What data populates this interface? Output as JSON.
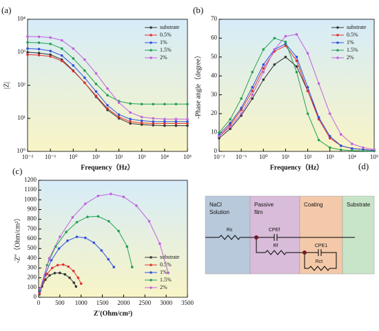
{
  "chart_data": [
    {
      "type": "line",
      "label": "(a)",
      "xlabel": "Frequency（Hz）",
      "ylabel": "|Z|",
      "x_log": true,
      "y_log": true,
      "xlim": [
        0.01,
        100000
      ],
      "ylim": [
        1,
        10000
      ],
      "xticks": [
        {
          "value": 0.01,
          "label": "10⁻²"
        },
        {
          "value": 0.1,
          "label": "10⁻¹"
        },
        {
          "value": 1,
          "label": "10⁰"
        },
        {
          "value": 10,
          "label": "10¹"
        },
        {
          "value": 100,
          "label": "10²"
        },
        {
          "value": 1000,
          "label": "10³"
        },
        {
          "value": 10000,
          "label": "10⁴"
        },
        {
          "value": 100000,
          "label": "10⁵"
        }
      ],
      "yticks": [
        {
          "value": 1,
          "label": "10⁰"
        },
        {
          "value": 10,
          "label": "10¹"
        },
        {
          "value": 100,
          "label": "10²"
        },
        {
          "value": 1000,
          "label": "10³"
        },
        {
          "value": 10000,
          "label": "10⁴"
        }
      ],
      "legend": "upper right",
      "x": [
        0.01,
        0.0316,
        0.1,
        0.316,
        1,
        3.16,
        10,
        31.6,
        100,
        316,
        1000,
        3162,
        10000,
        31623,
        100000
      ],
      "series": [
        {
          "name": "substrate",
          "color": "#333333",
          "values": [
            1000,
            950,
            850,
            600,
            280,
            120,
            45,
            18,
            10,
            7,
            6.5,
            6.2,
            6,
            6,
            6
          ]
        },
        {
          "name": "0.5%",
          "color": "#e03030",
          "values": [
            850,
            820,
            750,
            550,
            270,
            120,
            48,
            20,
            11,
            8,
            7.2,
            7,
            7,
            7,
            7
          ]
        },
        {
          "name": "1%",
          "color": "#3050e0",
          "values": [
            1300,
            1250,
            1100,
            800,
            400,
            170,
            65,
            25,
            13,
            9.5,
            8.5,
            8,
            8,
            8,
            8
          ]
        },
        {
          "name": "1.5%",
          "color": "#20a050",
          "values": [
            2000,
            1950,
            1800,
            1300,
            650,
            280,
            110,
            50,
            33,
            28,
            27,
            27,
            27,
            27,
            27
          ]
        },
        {
          "name": "2%",
          "color": "#c060e0",
          "values": [
            3000,
            2950,
            2800,
            2300,
            1300,
            600,
            230,
            80,
            30,
            15,
            11,
            10,
            9.5,
            9.5,
            9.5
          ]
        }
      ]
    },
    {
      "type": "line",
      "label": "(b)",
      "xlabel": "Frequency（Hz）",
      "ylabel": "-Phase angle（degree）",
      "x_log": true,
      "y_log": false,
      "xlim": [
        0.01,
        100000
      ],
      "ylim": [
        0,
        70
      ],
      "xticks": [
        {
          "value": 0.01,
          "label": "10⁻²"
        },
        {
          "value": 0.1,
          "label": "10⁻¹"
        },
        {
          "value": 1,
          "label": "10⁰"
        },
        {
          "value": 10,
          "label": "10¹"
        },
        {
          "value": 100,
          "label": "10²"
        },
        {
          "value": 1000,
          "label": "10³"
        },
        {
          "value": 10000,
          "label": "10⁴"
        },
        {
          "value": 100000,
          "label": "10⁵"
        }
      ],
      "yticks": [
        0,
        10,
        20,
        30,
        40,
        50,
        60,
        70
      ],
      "legend": "upper right",
      "x": [
        0.01,
        0.0316,
        0.1,
        0.316,
        1,
        3.16,
        10,
        31.6,
        100,
        316,
        1000,
        3162,
        10000,
        31623,
        100000
      ],
      "series": [
        {
          "name": "substrate",
          "color": "#333333",
          "values": [
            7,
            12,
            19,
            28,
            38,
            46,
            50,
            45,
            32,
            18,
            8,
            3,
            1.5,
            1,
            0.5
          ]
        },
        {
          "name": "0.5%",
          "color": "#e03030",
          "values": [
            8,
            14,
            22,
            32,
            44,
            53,
            56,
            48,
            32,
            17,
            7,
            3,
            1.5,
            1,
            0.5
          ]
        },
        {
          "name": "1%",
          "color": "#3050e0",
          "values": [
            9,
            15,
            23,
            34,
            46,
            54,
            57,
            50,
            34,
            18,
            8,
            3,
            1.5,
            1,
            0.5
          ]
        },
        {
          "name": "1.5%",
          "color": "#20a050",
          "values": [
            10,
            17,
            28,
            42,
            54,
            60,
            58,
            42,
            20,
            6,
            2,
            0.8,
            0.4,
            0.3,
            0.2
          ]
        },
        {
          "name": "2%",
          "color": "#c060e0",
          "values": [
            8,
            13,
            20,
            30,
            42,
            54,
            61,
            62,
            52,
            36,
            20,
            9,
            4,
            2,
            1
          ]
        }
      ]
    },
    {
      "type": "line",
      "label": "(c)",
      "xlabel": "Z'(Ohm/cm²)",
      "ylabel": "-Z''（Ohm/cm²）",
      "x_log": false,
      "y_log": false,
      "xlim": [
        0,
        3500
      ],
      "ylim": [
        0,
        1200
      ],
      "xticks": [
        0,
        500,
        1000,
        1500,
        2000,
        2500,
        3000,
        3500
      ],
      "yticks": [
        0,
        100,
        200,
        300,
        400,
        500,
        600,
        700,
        800,
        900,
        1000,
        1100,
        1200
      ],
      "legend": "lower right",
      "series": [
        {
          "name": "substrate",
          "color": "#333333",
          "x": [
            20,
            80,
            160,
            260,
            380,
            500,
            620,
            730,
            830,
            880
          ],
          "values": [
            30,
            110,
            180,
            225,
            248,
            250,
            235,
            200,
            150,
            110
          ]
        },
        {
          "name": "0.5%",
          "color": "#e03030",
          "x": [
            20,
            100,
            200,
            320,
            450,
            580,
            700,
            820,
            930,
            1000
          ],
          "values": [
            40,
            150,
            240,
            300,
            330,
            335,
            315,
            270,
            200,
            140
          ]
        },
        {
          "name": "1%",
          "color": "#3050e0",
          "x": [
            30,
            150,
            300,
            480,
            680,
            900,
            1100,
            1300,
            1480,
            1640,
            1770
          ],
          "values": [
            60,
            230,
            380,
            500,
            580,
            620,
            610,
            560,
            480,
            390,
            310
          ]
        },
        {
          "name": "1.5%",
          "color": "#20a050",
          "x": [
            40,
            200,
            400,
            650,
            900,
            1150,
            1400,
            1650,
            1880,
            2080,
            2200
          ],
          "values": [
            80,
            330,
            520,
            670,
            770,
            825,
            830,
            780,
            680,
            520,
            310
          ]
        },
        {
          "name": "2%",
          "color": "#c060e0",
          "x": [
            40,
            250,
            500,
            800,
            1100,
            1400,
            1700,
            2000,
            2300,
            2600,
            2850,
            3050
          ],
          "values": [
            90,
            400,
            620,
            820,
            960,
            1040,
            1060,
            1030,
            940,
            780,
            550,
            250
          ]
        }
      ]
    }
  ],
  "diagram": {
    "label": "(d)",
    "regions": [
      {
        "lines": [
          "NaCl",
          "Solution"
        ]
      },
      {
        "lines": [
          "Passive",
          "film"
        ]
      },
      {
        "lines": [
          "Coating"
        ]
      },
      {
        "lines": [
          "Substrate"
        ]
      }
    ],
    "elements": [
      "Rs",
      "CPEf",
      "Rf",
      "CPE1",
      "Rct"
    ]
  }
}
